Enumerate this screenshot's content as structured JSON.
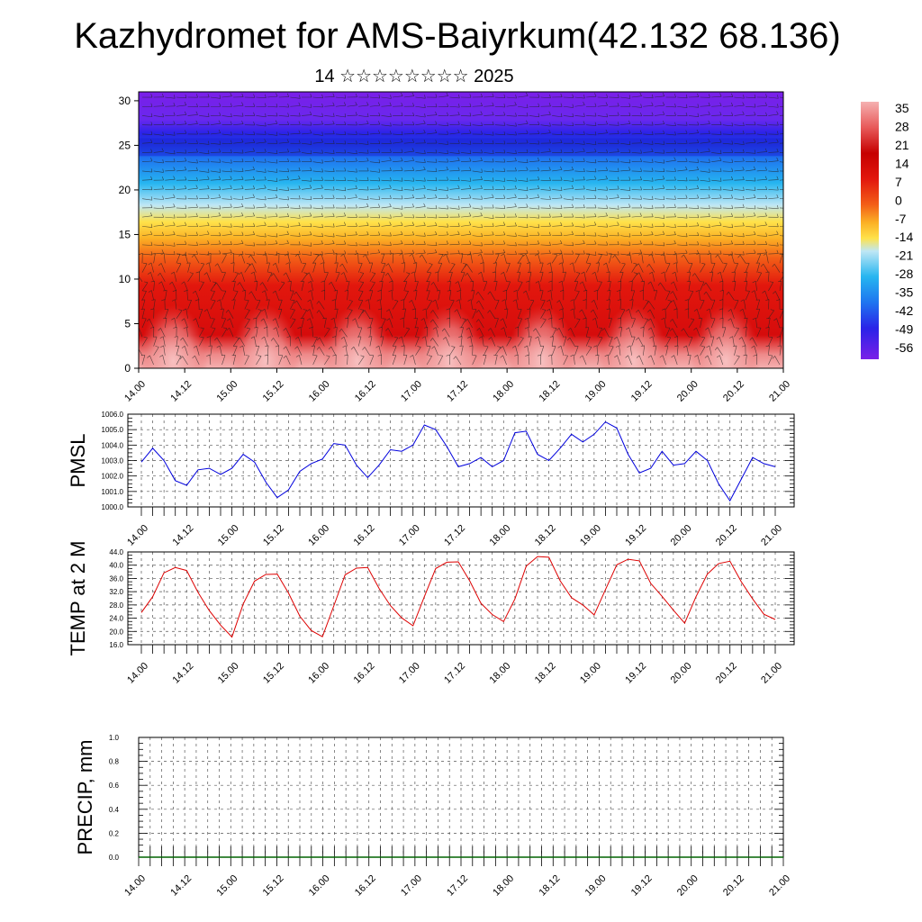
{
  "header": {
    "title": "Kazhydromet for AMS-Baiyrkum(42.132 68.136)",
    "subtitle": "14 ☆☆☆☆☆☆☆☆ 2025"
  },
  "colors": {
    "pmsl_line": "#0000dd",
    "temp_line": "#dd0000",
    "precip_line": "#006400",
    "colorbar": [
      "#7a1fe8",
      "#2a23e8",
      "#1e74f0",
      "#26b5f0",
      "#bfe7f5",
      "#ffe24a",
      "#fbb125",
      "#f35f17",
      "#e2170d",
      "#c60000",
      "#e85a5a",
      "#f5b0b0"
    ]
  },
  "chart_data": [
    {
      "type": "heatmap",
      "name": "vertical-temperature-wind",
      "x_tick_labels": [
        "14.00",
        "14.12",
        "15.00",
        "15.12",
        "16.00",
        "16.12",
        "17.00",
        "17.12",
        "18.00",
        "18.12",
        "19.00",
        "19.12",
        "20.00",
        "20.12",
        "21.00"
      ],
      "y_ticks": [
        0,
        5,
        10,
        15,
        20,
        25,
        30
      ],
      "ylim": [
        0,
        31
      ],
      "colorbar_labels": [
        "35",
        "28",
        "21",
        "14",
        "7",
        "0",
        "-7",
        "-14",
        "-21",
        "-28",
        "-35",
        "-42",
        "-49",
        "-56"
      ],
      "overlay": "wind barbs"
    },
    {
      "type": "line",
      "name": "pmsl",
      "ylabel": "PMSL",
      "ylim": [
        1000.0,
        1006.0
      ],
      "y_tick_labels": [
        "1000.0",
        "1001.0",
        "1002.0",
        "1003.0",
        "1004.0",
        "1005.0",
        "1006.0"
      ],
      "x_tick_labels": [
        "14.00",
        "14.12",
        "15.00",
        "15.12",
        "16.00",
        "16.12",
        "17.00",
        "17.12",
        "18.00",
        "18.12",
        "19.00",
        "19.12",
        "20.00",
        "20.12",
        "21.00"
      ],
      "values": [
        1002.9,
        1003.8,
        1003.0,
        1001.7,
        1001.4,
        1002.4,
        1002.5,
        1002.1,
        1002.5,
        1003.4,
        1002.9,
        1001.6,
        1000.6,
        1001.1,
        1002.3,
        1002.8,
        1003.1,
        1004.1,
        1004.0,
        1002.7,
        1001.9,
        1002.7,
        1003.7,
        1003.6,
        1004.0,
        1005.3,
        1005.0,
        1003.9,
        1002.6,
        1002.8,
        1003.2,
        1002.6,
        1003.0,
        1004.8,
        1004.9,
        1003.4,
        1003.0,
        1003.8,
        1004.7,
        1004.2,
        1004.7,
        1005.5,
        1005.1,
        1003.4,
        1002.2,
        1002.5,
        1003.6,
        1002.7,
        1002.8,
        1003.6,
        1003.0,
        1001.5,
        1000.4,
        1001.8,
        1003.2,
        1002.8,
        1002.6
      ]
    },
    {
      "type": "line",
      "name": "temp-2m",
      "ylabel": "TEMP at 2 M",
      "ylim": [
        16.0,
        44.0
      ],
      "y_tick_labels": [
        "16.0",
        "20.0",
        "24.0",
        "28.0",
        "32.0",
        "36.0",
        "40.0",
        "44.0"
      ],
      "x_tick_labels": [
        "14.00",
        "14.12",
        "15.00",
        "15.12",
        "16.00",
        "16.12",
        "17.00",
        "17.12",
        "18.00",
        "18.12",
        "19.00",
        "19.12",
        "20.00",
        "20.12",
        "21.00"
      ],
      "values": [
        25.7,
        30.5,
        37.7,
        39.3,
        38.4,
        31.8,
        26.3,
        21.9,
        18.3,
        28.3,
        35.2,
        37.2,
        37.3,
        31.6,
        24.6,
        20.3,
        18.4,
        27.7,
        37.1,
        39.1,
        39.3,
        33.0,
        27.8,
        24.1,
        21.7,
        30.5,
        39.0,
        40.9,
        41.0,
        35.3,
        28.5,
        25.1,
        23.0,
        29.8,
        39.7,
        42.6,
        42.4,
        35.3,
        30.2,
        28.0,
        25.0,
        32.6,
        40.1,
        41.8,
        41.3,
        34.5,
        30.6,
        26.4,
        22.5,
        30.5,
        37.3,
        40.5,
        41.2,
        35.0,
        29.8,
        25.2,
        23.6
      ]
    },
    {
      "type": "line",
      "name": "precip",
      "ylabel": "PRECIP, mm",
      "ylim": [
        0.0,
        1.0
      ],
      "y_tick_labels": [
        "0.0",
        "0.2",
        "0.4",
        "0.6",
        "0.8",
        "1.0"
      ],
      "x_tick_labels": [
        "14.00",
        "14.12",
        "15.00",
        "15.12",
        "16.00",
        "16.12",
        "17.00",
        "17.12",
        "18.00",
        "18.12",
        "19.00",
        "19.12",
        "20.00",
        "20.12",
        "21.00"
      ],
      "values": [
        0,
        0,
        0,
        0,
        0,
        0,
        0,
        0,
        0,
        0,
        0,
        0,
        0,
        0,
        0,
        0,
        0,
        0,
        0,
        0,
        0,
        0,
        0,
        0,
        0,
        0,
        0,
        0,
        0,
        0,
        0,
        0,
        0,
        0,
        0,
        0,
        0,
        0,
        0,
        0,
        0,
        0,
        0,
        0,
        0,
        0,
        0,
        0,
        0,
        0,
        0,
        0,
        0,
        0,
        0,
        0,
        0
      ]
    }
  ]
}
